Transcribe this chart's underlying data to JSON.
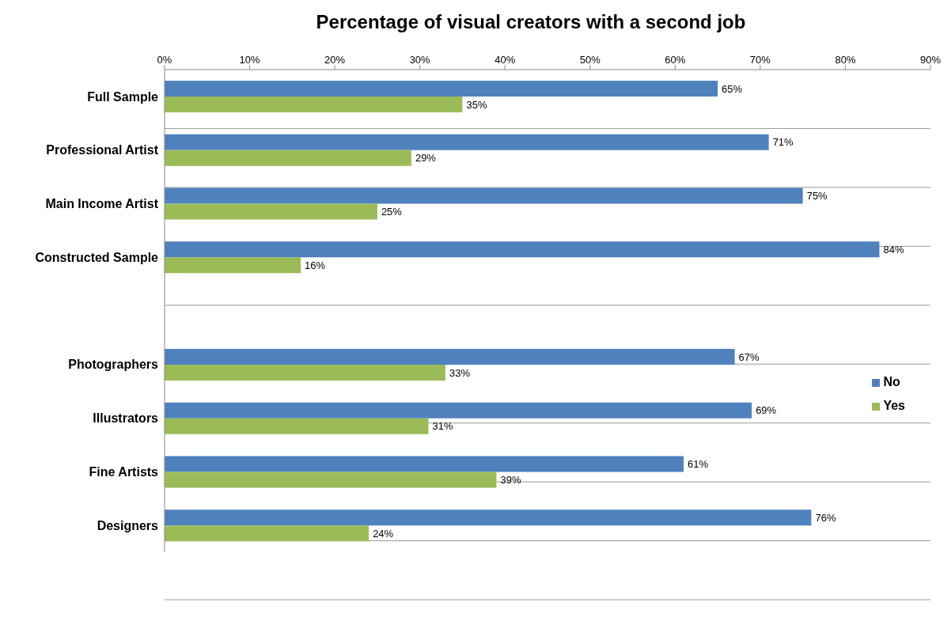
{
  "chart_data": {
    "type": "bar",
    "orientation": "horizontal",
    "title": "Percentage of visual creators with a second job",
    "categories": [
      "Full Sample",
      "Professional Artist",
      "Main Income Artist",
      "Constructed Sample",
      null,
      "Photographers",
      "Illustrators",
      "Fine Artists",
      "Designers"
    ],
    "series": [
      {
        "name": "No",
        "color": "#4f81bd",
        "values": [
          65,
          71,
          75,
          84,
          null,
          67,
          69,
          61,
          76
        ],
        "value_labels": [
          "65%",
          "71%",
          "75%",
          "84%",
          null,
          "67%",
          "69%",
          "61%",
          "76%"
        ]
      },
      {
        "name": "Yes",
        "color": "#9bbb59",
        "values": [
          35,
          29,
          25,
          16,
          null,
          33,
          31,
          39,
          24
        ],
        "value_labels": [
          "35%",
          "29%",
          "25%",
          "16%",
          null,
          "33%",
          "31%",
          "39%",
          "24%"
        ]
      }
    ],
    "xlim": [
      0,
      90
    ],
    "xticks": [
      {
        "value": 0,
        "label": "0%"
      },
      {
        "value": 10,
        "label": "10%"
      },
      {
        "value": 20,
        "label": "20%"
      },
      {
        "value": 30,
        "label": "30%"
      },
      {
        "value": 40,
        "label": "40%"
      },
      {
        "value": 50,
        "label": "50%"
      },
      {
        "value": 60,
        "label": "60%"
      },
      {
        "value": 70,
        "label": "70%"
      },
      {
        "value": 80,
        "label": "80%"
      },
      {
        "value": 90,
        "label": "90%"
      }
    ],
    "grid": "y",
    "legend": "right"
  }
}
